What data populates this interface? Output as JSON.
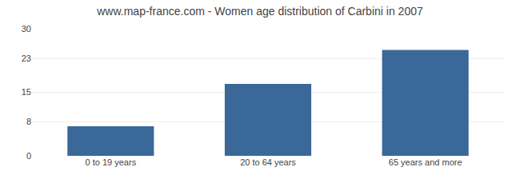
{
  "chart_data": {
    "type": "bar",
    "title": "www.map-france.com - Women age distribution of Carbini in 2007",
    "categories": [
      "0 to 19 years",
      "20 to 64 years",
      "65 years and more"
    ],
    "values": [
      7,
      17,
      25
    ],
    "color": "#3a6899",
    "ylim": [
      0,
      30
    ],
    "yticks": [
      0,
      8,
      15,
      23,
      30
    ],
    "grid": true
  }
}
